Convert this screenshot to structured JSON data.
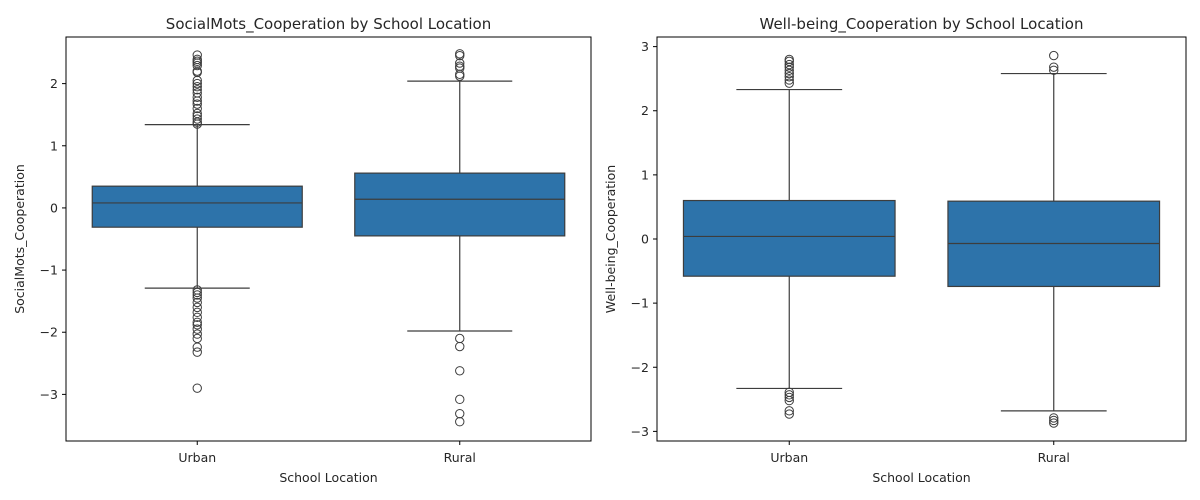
{
  "chart_data": [
    {
      "type": "box",
      "title": "SocialMots_Cooperation by School Location",
      "xlabel": "School Location",
      "ylabel": "SocialMots_Cooperation",
      "ylim": [
        -3.75,
        2.75
      ],
      "yticks": [
        -3,
        -2,
        -1,
        0,
        1,
        2
      ],
      "categories": [
        "Urban",
        "Rural"
      ],
      "boxes": [
        {
          "category": "Urban",
          "whisker_low": -1.29,
          "q1": -0.31,
          "median": 0.08,
          "q3": 0.35,
          "whisker_high": 1.34,
          "outliers": [
            2.46,
            2.39,
            2.36,
            2.33,
            2.29,
            2.2,
            2.18,
            2.05,
            2.0,
            1.95,
            1.9,
            1.85,
            1.78,
            1.72,
            1.67,
            1.6,
            1.52,
            1.48,
            1.43,
            1.38,
            1.35,
            -1.32,
            -1.36,
            -1.4,
            -1.45,
            -1.52,
            -1.6,
            -1.68,
            -1.76,
            -1.84,
            -1.88,
            -1.95,
            -2.03,
            -2.1,
            -2.24,
            -2.32,
            -2.9
          ]
        },
        {
          "category": "Rural",
          "whisker_low": -1.98,
          "q1": -0.45,
          "median": 0.14,
          "q3": 0.56,
          "whisker_high": 2.04,
          "outliers": [
            2.48,
            2.45,
            2.33,
            2.28,
            2.25,
            2.15,
            2.12,
            -2.1,
            -2.23,
            -2.62,
            -3.08,
            -3.31,
            -3.44
          ]
        }
      ]
    },
    {
      "type": "box",
      "title": "Well-being_Cooperation by School Location",
      "xlabel": "School Location",
      "ylabel": "Well-being_Cooperation",
      "ylim": [
        -3.15,
        3.15
      ],
      "yticks": [
        -3,
        -2,
        -1,
        0,
        1,
        2,
        3
      ],
      "categories": [
        "Urban",
        "Rural"
      ],
      "boxes": [
        {
          "category": "Urban",
          "whisker_low": -2.33,
          "q1": -0.58,
          "median": 0.04,
          "q3": 0.6,
          "whisker_high": 2.33,
          "outliers": [
            2.8,
            2.77,
            2.72,
            2.68,
            2.63,
            2.58,
            2.53,
            2.48,
            2.43,
            -2.39,
            -2.43,
            -2.47,
            -2.52,
            -2.68,
            -2.73
          ]
        },
        {
          "category": "Rural",
          "whisker_low": -2.68,
          "q1": -0.74,
          "median": -0.07,
          "q3": 0.59,
          "whisker_high": 2.58,
          "outliers": [
            2.86,
            2.68,
            2.63,
            -2.79,
            -2.83,
            -2.87
          ]
        }
      ]
    }
  ],
  "style": {
    "box_fill": "#2d73aa",
    "line_color": "#3d3d3d",
    "axis_color": "#000000"
  }
}
